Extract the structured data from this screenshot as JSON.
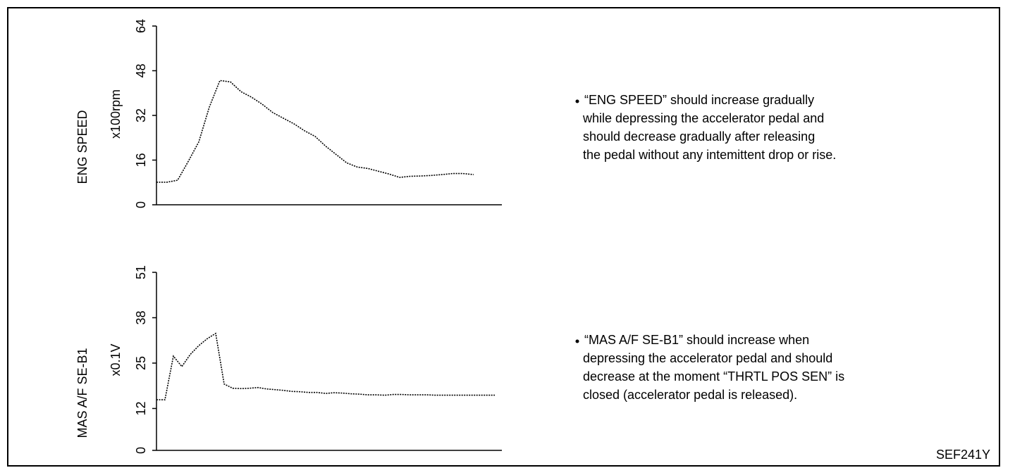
{
  "chart_data": [
    {
      "type": "line",
      "ylabel": "ENG SPEED",
      "unit": "x100rpm",
      "ylim": [
        0,
        64
      ],
      "yticks": [
        0,
        16,
        32,
        48,
        64
      ],
      "color": "#000000",
      "values": [
        8.1,
        8.1,
        8.8,
        15.5,
        22.5,
        35,
        44.5,
        44,
        40.5,
        38.5,
        36,
        33,
        31,
        29,
        26.5,
        24.5,
        21,
        18,
        15,
        13.5,
        13,
        12,
        11,
        9.8,
        10.2,
        10.3,
        10.5,
        10.8,
        11.2,
        11.2,
        10.8
      ]
    },
    {
      "type": "line",
      "ylabel": "MAS A/F SE-B1",
      "unit": "x0.1V",
      "ylim": [
        0,
        51
      ],
      "yticks": [
        0,
        12,
        25,
        38,
        51
      ],
      "color": "#000000",
      "values": [
        14.5,
        14.5,
        27,
        24,
        27.5,
        30,
        32,
        33.5,
        19,
        17.8,
        17.7,
        17.8,
        18,
        17.6,
        17.4,
        17.2,
        16.9,
        16.8,
        16.6,
        16.6,
        16.3,
        16.5,
        16.4,
        16.2,
        16.1,
        15.9,
        15.9,
        15.8,
        16,
        16,
        15.9,
        15.9,
        15.9,
        15.8,
        15.8,
        15.8,
        15.8,
        15.8,
        15.8,
        15.8,
        15.8
      ]
    }
  ],
  "notes": [
    [
      "“ENG SPEED” should increase gradually",
      "while depressing the accelerator pedal and",
      "should decrease gradually after releasing",
      "the pedal without any intemittent drop or rise."
    ],
    [
      "“MAS A/F SE-B1” should increase when",
      "depressing the accelerator pedal and  should",
      "decrease at the moment “THRTL POS SEN” is",
      "closed (accelerator pedal is released)."
    ]
  ],
  "figure_id": "SEF241Y"
}
